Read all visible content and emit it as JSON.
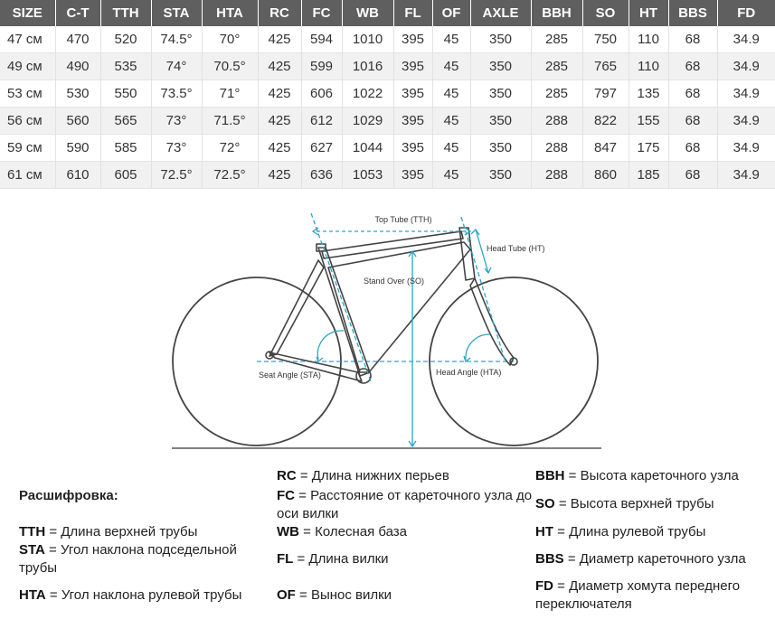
{
  "table": {
    "headers": [
      "SIZE",
      "C-T",
      "TTH",
      "STA",
      "HTA",
      "RC",
      "FC",
      "WB",
      "FL",
      "OF",
      "AXLE",
      "BBH",
      "SO",
      "HT",
      "BBS",
      "FD"
    ],
    "rows": [
      [
        "47 см",
        "470",
        "520",
        "74.5°",
        "70°",
        "425",
        "594",
        "1010",
        "395",
        "45",
        "350",
        "285",
        "750",
        "110",
        "68",
        "34.9"
      ],
      [
        "49 см",
        "490",
        "535",
        "74°",
        "70.5°",
        "425",
        "599",
        "1016",
        "395",
        "45",
        "350",
        "285",
        "765",
        "110",
        "68",
        "34.9"
      ],
      [
        "53 см",
        "530",
        "550",
        "73.5°",
        "71°",
        "425",
        "606",
        "1022",
        "395",
        "45",
        "350",
        "285",
        "797",
        "135",
        "68",
        "34.9"
      ],
      [
        "56 см",
        "560",
        "565",
        "73°",
        "71.5°",
        "425",
        "612",
        "1029",
        "395",
        "45",
        "350",
        "288",
        "822",
        "155",
        "68",
        "34.9"
      ],
      [
        "59 см",
        "590",
        "585",
        "73°",
        "72°",
        "425",
        "627",
        "1044",
        "395",
        "45",
        "350",
        "288",
        "847",
        "175",
        "68",
        "34.9"
      ],
      [
        "61 см",
        "610",
        "605",
        "72.5°",
        "72.5°",
        "425",
        "636",
        "1053",
        "395",
        "45",
        "350",
        "288",
        "860",
        "185",
        "68",
        "34.9"
      ]
    ]
  },
  "diagram": {
    "top_tube_label": "Top Tube (TTH)",
    "head_tube_label": "Head Tube (HT)",
    "stand_over_label": "Stand Over (SO)",
    "seat_angle_label": "Seat Angle (STA)",
    "head_angle_label": "Head Angle (HTA)",
    "accent_color": "#2aa6c8",
    "line_color": "#444444"
  },
  "legend": {
    "title": "Расшифровка:",
    "items": [
      {
        "abbr": "TTH",
        "text": " = Длина верхней трубы"
      },
      {
        "abbr": "STA",
        "text": " = Угол наклона подседельной трубы"
      },
      {
        "abbr": "HTA",
        "text": " = Угол наклона рулевой трубы"
      },
      {
        "abbr": "RC",
        "text": " = Длина нижних перьев"
      },
      {
        "abbr": "FC",
        "text": " = Расстояние от кареточного узла до оси вилки"
      },
      {
        "abbr": "WB",
        "text": " = Колесная база"
      },
      {
        "abbr": "FL",
        "text": " = Длина вилки"
      },
      {
        "abbr": "OF",
        "text": " = Вынос вилки"
      },
      {
        "abbr": "BBH",
        "text": " = Высота кареточного узла"
      },
      {
        "abbr": "SO",
        "text": " = Высота верхней трубы"
      },
      {
        "abbr": "HT",
        "text": " = Длина рулевой трубы"
      },
      {
        "abbr": "BBS",
        "text": " = Диаметр кареточного узла"
      },
      {
        "abbr": "FD",
        "text": " = Диаметр хомута переднего переключателя"
      }
    ]
  }
}
